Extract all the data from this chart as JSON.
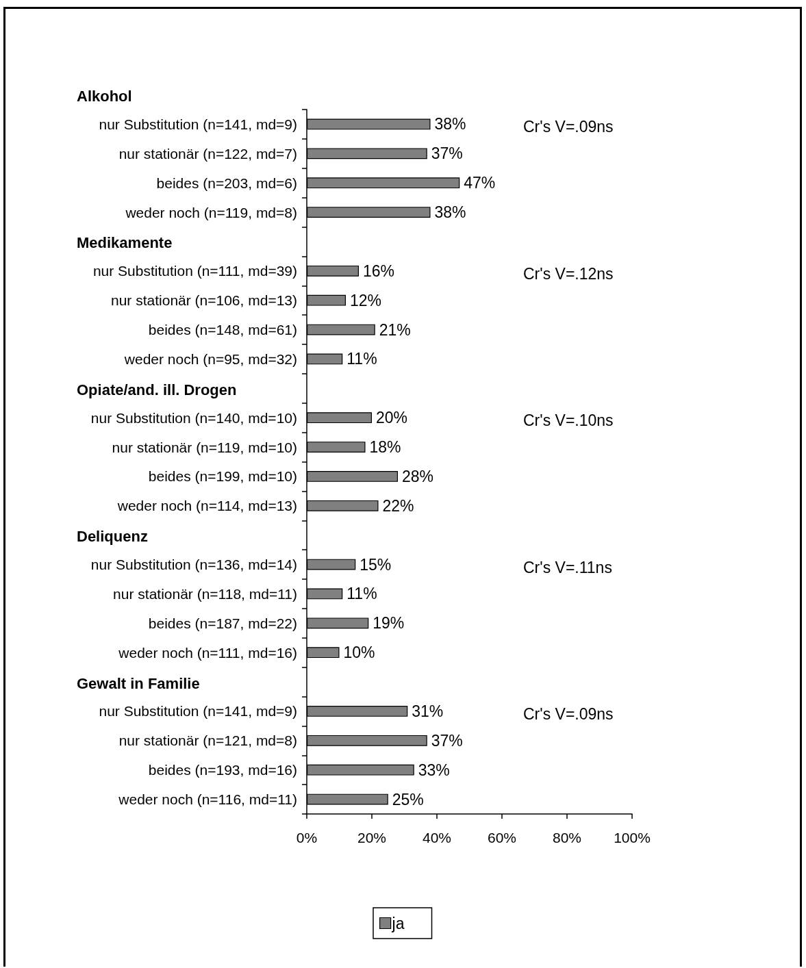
{
  "chart_data": {
    "type": "bar",
    "orientation": "horizontal",
    "categories": [
      "nur Substitution (n=141, md=9)",
      "nur stationär (n=122, md=7)",
      "beides (n=203, md=6)",
      "weder noch (n=119, md=8)",
      null,
      "nur Substitution (n=111, md=39)",
      "nur stationär (n=106, md=13)",
      "beides (n=148, md=61)",
      "weder noch (n=95, md=32)",
      null,
      "nur Substitution (n=140, md=10)",
      "nur stationär (n=119, md=10)",
      "beides (n=199, md=10)",
      "weder noch (n=114, md=13)",
      null,
      "nur Substitution (n=136, md=14)",
      "nur stationär (n=118, md=11)",
      "beides (n=187, md=22)",
      "weder noch (n=111, md=16)",
      null,
      "nur Substitution (n=141, md=9)",
      "nur stationär (n=121, md=8)",
      "beides (n=193, md=16)",
      "weder noch (n=116, md=11)"
    ],
    "series": [
      {
        "name": "ja",
        "color": "#808080",
        "values": [
          38,
          37,
          47,
          38,
          null,
          16,
          12,
          21,
          11,
          null,
          20,
          18,
          28,
          22,
          null,
          15,
          11,
          19,
          10,
          null,
          31,
          37,
          33,
          25
        ],
        "value_labels": [
          "38%",
          "37%",
          "47%",
          "38%",
          null,
          "16%",
          "12%",
          "21%",
          "11%",
          null,
          "20%",
          "18%",
          "28%",
          "22%",
          null,
          "15%",
          "11%",
          "19%",
          "10%",
          null,
          "31%",
          "37%",
          "33%",
          "25%"
        ]
      }
    ],
    "xlim": [
      0,
      100
    ],
    "xticks": [
      {
        "value": 0,
        "label": "0%"
      },
      {
        "value": 20,
        "label": "20%"
      },
      {
        "value": 40,
        "label": "40%"
      },
      {
        "value": 60,
        "label": "60%"
      },
      {
        "value": 80,
        "label": "80%"
      },
      {
        "value": 100,
        "label": "100%"
      }
    ],
    "annotations": [
      "Alkohol",
      "Cr's V=.09ns",
      "Medikamente",
      "Cr's V=.12ns",
      "Opiate/and. ill. Drogen",
      "Cr's V=.10ns",
      "Deliquenz",
      "Cr's V=.11ns",
      "Gewalt in Familie",
      "Cr's V=.09ns"
    ],
    "legend": "bottom",
    "grid": false
  }
}
